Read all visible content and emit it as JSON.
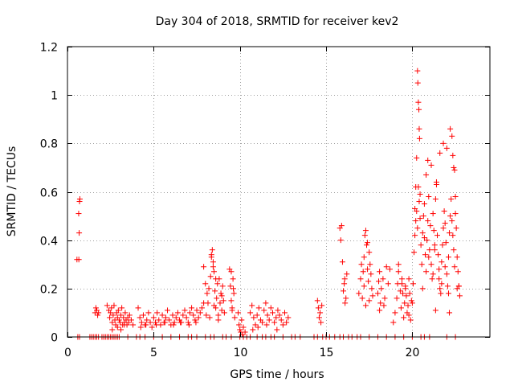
{
  "chart_data": {
    "type": "scatter",
    "title": "Day 304 of 2018, SRMTID for receiver kev2",
    "xlabel": "GPS time / hours",
    "ylabel": "SRMTID / TECUs",
    "xlim": [
      0,
      24.5
    ],
    "ylim": [
      0,
      1.2
    ],
    "grid": true,
    "marker": "+",
    "marker_color": "#ff0000",
    "x_ticks": [
      0,
      5,
      10,
      15,
      20
    ],
    "x_tick_labels": [
      "0",
      "5",
      "10",
      "15",
      "20"
    ],
    "y_ticks": [
      0,
      0.2,
      0.4,
      0.6,
      0.8,
      1.0,
      1.2
    ],
    "y_tick_labels": [
      "0",
      "0.2",
      "0.4",
      "0.6",
      "0.8",
      "1",
      "1.2"
    ],
    "series": [
      {
        "name": "kev2 SRMTID",
        "x": [
          0.55,
          0.65,
          0.7,
          0.72,
          0.68,
          0.66,
          1.6,
          1.7,
          1.75,
          1.8,
          1.65,
          2.3,
          2.4,
          2.45,
          2.5,
          2.55,
          2.6,
          2.65,
          2.7,
          2.75,
          2.8,
          2.85,
          2.9,
          2.95,
          3.0,
          3.05,
          3.1,
          3.15,
          3.2,
          3.25,
          3.3,
          3.35,
          3.4,
          3.45,
          3.5,
          3.55,
          3.6,
          3.7,
          3.8,
          2.6,
          2.9,
          3.1,
          3.3,
          4.1,
          4.2,
          4.3,
          4.4,
          4.5,
          4.6,
          4.7,
          4.8,
          4.9,
          5.0,
          5.1,
          5.2,
          5.3,
          5.4,
          5.5,
          5.6,
          5.7,
          5.8,
          5.9,
          6.0,
          6.1,
          6.2,
          6.3,
          6.4,
          6.5,
          6.6,
          6.7,
          6.8,
          6.9,
          7.0,
          7.1,
          7.2,
          7.3,
          7.4,
          7.5,
          7.6,
          7.7,
          7.8,
          7.9,
          4.25,
          4.55,
          5.15,
          5.65,
          6.15,
          6.55,
          7.05,
          7.45,
          7.9,
          8.0,
          8.1,
          8.15,
          8.2,
          8.3,
          8.35,
          8.4,
          8.45,
          8.5,
          8.55,
          8.6,
          8.65,
          8.7,
          8.75,
          8.8,
          8.85,
          8.9,
          8.95,
          9.0,
          9.05,
          9.1,
          8.25,
          8.5,
          8.6,
          8.35,
          8.75,
          8.45,
          8.95,
          8.05,
          9.4,
          9.45,
          9.5,
          9.55,
          9.6,
          9.65,
          9.7,
          9.5,
          9.55,
          9.62,
          9.9,
          9.95,
          10.0,
          10.05,
          10.1,
          10.15,
          10.2,
          10.3,
          10.6,
          10.7,
          10.8,
          10.9,
          11.0,
          11.1,
          11.2,
          11.3,
          11.4,
          11.5,
          11.6,
          11.7,
          11.8,
          11.9,
          12.0,
          12.1,
          12.2,
          12.3,
          12.4,
          12.5,
          12.6,
          12.7,
          12.8,
          10.75,
          11.05,
          11.55,
          12.15,
          14.5,
          14.55,
          14.6,
          14.65,
          14.7,
          14.75,
          15.8,
          15.9,
          15.95,
          16.0,
          16.05,
          16.1,
          16.15,
          16.2,
          15.85,
          16.08,
          16.9,
          17.0,
          17.05,
          17.1,
          17.15,
          17.2,
          17.25,
          17.3,
          17.35,
          17.4,
          17.45,
          17.5,
          17.55,
          17.6,
          17.65,
          17.7,
          17.2,
          17.4,
          17.3,
          17.5,
          18.0,
          18.05,
          18.1,
          18.15,
          18.2,
          18.3,
          18.4,
          18.5,
          18.6,
          18.7,
          18.1,
          18.35,
          18.9,
          19.0,
          19.1,
          19.15,
          19.2,
          19.3,
          19.35,
          19.4,
          19.45,
          19.5,
          19.55,
          19.6,
          19.65,
          19.7,
          19.75,
          19.8,
          19.85,
          19.9,
          19.95,
          19.2,
          19.4,
          19.6,
          19.8,
          20.0,
          20.05,
          20.1,
          20.15,
          20.2,
          20.25,
          20.3,
          20.35,
          20.4,
          20.45,
          20.5,
          20.55,
          20.6,
          20.65,
          20.7,
          20.75,
          20.8,
          20.85,
          20.9,
          20.95,
          21.0,
          21.05,
          21.1,
          21.15,
          21.2,
          21.25,
          21.3,
          21.35,
          21.4,
          21.45,
          21.5,
          21.55,
          21.6,
          21.65,
          21.7,
          21.75,
          21.8,
          21.85,
          21.9,
          21.95,
          22.0,
          22.05,
          22.1,
          22.15,
          22.2,
          22.25,
          22.3,
          22.35,
          22.4,
          22.45,
          22.5,
          22.55,
          22.6,
          22.65,
          22.7,
          22.75,
          20.3,
          20.32,
          20.35,
          20.38,
          20.4,
          20.42,
          20.25,
          20.8,
          20.9,
          21.1,
          21.4,
          21.6,
          21.8,
          22.0,
          22.2,
          22.3,
          22.35,
          22.4,
          22.45,
          22.5,
          20.6,
          21.2,
          21.7,
          22.15,
          20.2,
          20.45,
          20.7,
          20.95,
          21.3,
          21.55,
          21.9,
          22.1,
          22.6,
          22.7,
          20.15,
          21.35,
          0.6,
          0.7,
          1.3,
          1.4,
          1.5,
          1.6,
          1.7,
          1.8,
          2.0,
          2.1,
          2.2,
          2.3,
          2.4,
          2.5,
          2.6,
          2.7,
          2.8,
          2.9,
          3.0,
          3.5,
          4.0,
          4.2,
          4.5,
          5.0,
          5.5,
          6.0,
          6.5,
          7.0,
          7.2,
          7.5,
          8.0,
          8.3,
          8.5,
          9.0,
          9.2,
          9.5,
          10.0,
          10.2,
          10.4,
          10.6,
          11.0,
          11.3,
          11.5,
          11.8,
          12.0,
          12.5,
          13.0,
          13.2,
          13.5,
          14.3,
          14.5,
          14.8,
          15.0,
          15.2,
          15.5,
          15.8,
          16.0,
          16.3,
          16.5,
          16.8,
          17.0,
          17.5,
          18.0,
          18.5,
          19.0,
          19.5,
          20.0,
          20.5,
          20.7,
          21.0,
          22.0,
          22.5
        ],
        "y": [
          0.32,
          0.51,
          0.56,
          0.57,
          0.43,
          0.32,
          0.1,
          0.11,
          0.09,
          0.1,
          0.12,
          0.13,
          0.11,
          0.08,
          0.1,
          0.12,
          0.06,
          0.09,
          0.13,
          0.07,
          0.05,
          0.1,
          0.08,
          0.11,
          0.07,
          0.06,
          0.09,
          0.12,
          0.05,
          0.08,
          0.06,
          0.1,
          0.07,
          0.05,
          0.08,
          0.06,
          0.09,
          0.07,
          0.05,
          0.03,
          0.04,
          0.03,
          0.05,
          0.12,
          0.08,
          0.06,
          0.09,
          0.05,
          0.07,
          0.1,
          0.06,
          0.04,
          0.08,
          0.06,
          0.1,
          0.07,
          0.05,
          0.09,
          0.06,
          0.08,
          0.11,
          0.07,
          0.05,
          0.09,
          0.06,
          0.08,
          0.1,
          0.07,
          0.06,
          0.09,
          0.11,
          0.08,
          0.06,
          0.1,
          0.12,
          0.09,
          0.07,
          0.11,
          0.08,
          0.1,
          0.12,
          0.14,
          0.04,
          0.05,
          0.05,
          0.06,
          0.05,
          0.06,
          0.05,
          0.06,
          0.29,
          0.22,
          0.18,
          0.14,
          0.2,
          0.25,
          0.33,
          0.36,
          0.31,
          0.27,
          0.19,
          0.12,
          0.16,
          0.22,
          0.09,
          0.24,
          0.14,
          0.18,
          0.11,
          0.21,
          0.15,
          0.1,
          0.08,
          0.13,
          0.24,
          0.34,
          0.07,
          0.29,
          0.17,
          0.09,
          0.28,
          0.21,
          0.15,
          0.11,
          0.24,
          0.18,
          0.08,
          0.27,
          0.12,
          0.2,
          0.1,
          0.05,
          0.03,
          0.02,
          0.07,
          0.01,
          0.04,
          0.02,
          0.1,
          0.13,
          0.08,
          0.05,
          0.09,
          0.12,
          0.07,
          0.06,
          0.11,
          0.14,
          0.09,
          0.07,
          0.12,
          0.1,
          0.06,
          0.08,
          0.11,
          0.09,
          0.07,
          0.05,
          0.1,
          0.06,
          0.08,
          0.03,
          0.04,
          0.05,
          0.03,
          0.15,
          0.12,
          0.08,
          0.1,
          0.06,
          0.13,
          0.45,
          0.46,
          0.31,
          0.19,
          0.22,
          0.14,
          0.16,
          0.26,
          0.4,
          0.24,
          0.18,
          0.24,
          0.3,
          0.16,
          0.27,
          0.21,
          0.42,
          0.44,
          0.38,
          0.28,
          0.23,
          0.35,
          0.3,
          0.26,
          0.2,
          0.17,
          0.33,
          0.39,
          0.13,
          0.15,
          0.18,
          0.23,
          0.27,
          0.14,
          0.2,
          0.24,
          0.16,
          0.29,
          0.22,
          0.28,
          0.11,
          0.13,
          0.06,
          0.1,
          0.16,
          0.22,
          0.27,
          0.19,
          0.12,
          0.24,
          0.18,
          0.08,
          0.14,
          0.21,
          0.17,
          0.1,
          0.13,
          0.24,
          0.18,
          0.07,
          0.15,
          0.3,
          0.22,
          0.2,
          0.09,
          0.14,
          0.22,
          0.35,
          0.42,
          0.48,
          0.52,
          0.45,
          0.62,
          0.56,
          0.49,
          0.38,
          0.3,
          0.43,
          0.5,
          0.55,
          0.34,
          0.27,
          0.4,
          0.48,
          0.58,
          0.36,
          0.46,
          0.3,
          0.24,
          0.51,
          0.44,
          0.38,
          0.57,
          0.63,
          0.42,
          0.34,
          0.28,
          0.2,
          0.18,
          0.31,
          0.38,
          0.45,
          0.52,
          0.47,
          0.39,
          0.26,
          0.21,
          0.33,
          0.43,
          0.5,
          0.57,
          0.48,
          0.42,
          0.36,
          0.29,
          0.51,
          0.45,
          0.33,
          0.27,
          0.21,
          0.17,
          1.1,
          1.05,
          0.97,
          0.94,
          0.86,
          0.82,
          0.74,
          0.67,
          0.73,
          0.71,
          0.64,
          0.76,
          0.8,
          0.78,
          0.86,
          0.83,
          0.75,
          0.7,
          0.69,
          0.58,
          0.2,
          0.26,
          0.22,
          0.1,
          0.62,
          0.59,
          0.41,
          0.33,
          0.36,
          0.24,
          0.29,
          0.18,
          0.2,
          0.21,
          0.53,
          0.11,
          0,
          0,
          0,
          0,
          0,
          0,
          0,
          0,
          0,
          0,
          0,
          0,
          0,
          0,
          0,
          0,
          0,
          0,
          0,
          0,
          0,
          0,
          0,
          0,
          0,
          0,
          0,
          0,
          0,
          0,
          0,
          0,
          0,
          0,
          0,
          0,
          0,
          0,
          0,
          0,
          0,
          0,
          0,
          0,
          0,
          0,
          0,
          0,
          0,
          0,
          0,
          0,
          0,
          0,
          0,
          0,
          0,
          0,
          0,
          0,
          0,
          0,
          0,
          0,
          0,
          0,
          0,
          0,
          0,
          0,
          0,
          0
        ]
      }
    ]
  }
}
